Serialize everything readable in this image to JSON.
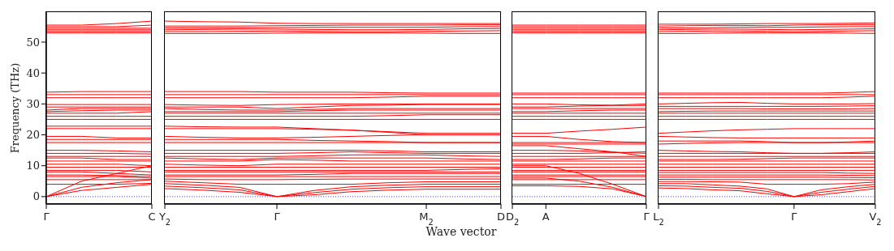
{
  "chart_data": [
    {
      "type": "line",
      "color": "#ff0000",
      "ylabel": "Frequency (THz)",
      "categories": [
        "Γ",
        null,
        null,
        "C"
      ],
      "ylim": [
        -2.4,
        59.7
      ],
      "yticks": [
        0,
        10,
        20,
        30,
        40,
        50
      ],
      "ref_lines": [
        {
          "axis": "y",
          "value": 0,
          "color": "#0000ff",
          "line_style": "dotted"
        }
      ],
      "series": [
        {
          "values": [
            53,
            53,
            53,
            53
          ]
        },
        {
          "values": [
            53.5,
            53.5,
            53.5,
            53.5
          ]
        },
        {
          "values": [
            54,
            54,
            54,
            54
          ]
        },
        {
          "values": [
            54.5,
            54.5,
            54.5,
            54.5
          ]
        },
        {
          "values": [
            55,
            55,
            55,
            55.5
          ]
        },
        {
          "values": [
            55.5,
            55.5,
            56,
            56.8
          ]
        },
        {
          "values": [
            32,
            32,
            32,
            32
          ]
        },
        {
          "values": [
            33,
            33,
            33,
            33
          ]
        },
        {
          "values": [
            33.8,
            34,
            34,
            34
          ]
        },
        {
          "values": [
            25,
            25,
            25,
            25
          ]
        },
        {
          "values": [
            26,
            26,
            26,
            26
          ]
        },
        {
          "values": [
            27,
            27,
            27,
            27.5
          ]
        },
        {
          "values": [
            27.5,
            27.8,
            28,
            28
          ]
        },
        {
          "values": [
            28,
            28.5,
            28.5,
            28.5
          ]
        },
        {
          "values": [
            29,
            29,
            29,
            29
          ]
        },
        {
          "values": [
            29.8,
            29.8,
            29.8,
            29.8
          ]
        },
        {
          "values": [
            22,
            22,
            22,
            22
          ]
        },
        {
          "values": [
            22.8,
            22.8,
            22.8,
            22.8
          ]
        },
        {
          "values": [
            17.5,
            17.5,
            17.5,
            17.5
          ]
        },
        {
          "values": [
            18.5,
            18.5,
            18.5,
            18.5
          ]
        },
        {
          "values": [
            19.5,
            19.5,
            19,
            19
          ]
        },
        {
          "values": [
            15,
            15,
            14.8,
            14.5
          ]
        },
        {
          "values": [
            14,
            14,
            14,
            13.8
          ]
        },
        {
          "values": [
            13,
            13,
            13,
            13
          ]
        },
        {
          "values": [
            12.5,
            12.5,
            12,
            12
          ]
        },
        {
          "values": [
            11.5,
            11.5,
            11.5,
            11.5
          ]
        },
        {
          "values": [
            10.5,
            10.5,
            10.5,
            10
          ]
        },
        {
          "values": [
            9.5,
            9.5,
            9.5,
            9.5
          ]
        },
        {
          "values": [
            8.5,
            8.5,
            8.5,
            8
          ]
        },
        {
          "values": [
            8,
            8,
            7.5,
            7
          ]
        },
        {
          "values": [
            7,
            7,
            6.8,
            6.5
          ]
        },
        {
          "values": [
            6.5,
            6.5,
            6.5,
            6
          ]
        },
        {
          "values": [
            5.5,
            5.5,
            5.5,
            5.5
          ]
        },
        {
          "values": [
            4,
            4,
            4,
            4.3
          ]
        },
        {
          "values": [
            0,
            5,
            7.5,
            10
          ]
        },
        {
          "values": [
            0,
            3,
            4.5,
            5.5
          ]
        },
        {
          "values": [
            0,
            2,
            3,
            4
          ]
        }
      ]
    },
    {
      "type": "line",
      "color": "#ff0000",
      "xlabel": "Wave vector",
      "tick_labels": "x",
      "categories": [
        "Y$_{2}$",
        null,
        null,
        "Γ",
        null,
        null,
        null,
        "M$_{2}$",
        null,
        "D"
      ],
      "ylim": [
        -2.4,
        59.7
      ],
      "yticks": [
        0,
        10,
        20,
        30,
        40,
        50
      ],
      "ref_lines": [
        {
          "axis": "y",
          "value": 0,
          "color": "#0000ff",
          "line_style": "dotted"
        }
      ],
      "series": [
        {
          "values": [
            52.8,
            52.8,
            52.8,
            52.9,
            53,
            53,
            53,
            52.9,
            52.8,
            52.8
          ]
        },
        {
          "values": [
            53.4,
            53.4,
            53.5,
            53.6,
            53.5,
            53.4,
            53.4,
            53.5,
            53.6,
            53.7
          ]
        },
        {
          "values": [
            54,
            54.1,
            54.2,
            54.2,
            54.1,
            54,
            54,
            54.1,
            54.3,
            54.4
          ]
        },
        {
          "values": [
            54.6,
            54.6,
            54.6,
            54.7,
            54.8,
            54.8,
            54.8,
            54.8,
            55,
            55
          ]
        },
        {
          "values": [
            55.2,
            55.2,
            55.2,
            55.3,
            55.4,
            55.5,
            55.5,
            55.5,
            55.6,
            55.6
          ]
        },
        {
          "values": [
            56.8,
            56.6,
            56.5,
            56.1,
            56,
            56,
            56,
            56,
            56,
            56
          ]
        },
        {
          "values": [
            32,
            32,
            32,
            32,
            32,
            32,
            32.2,
            32.5,
            32.5,
            32.5
          ]
        },
        {
          "values": [
            33,
            33,
            33,
            33,
            33,
            33,
            33,
            33,
            33,
            33
          ]
        },
        {
          "values": [
            34,
            34,
            34,
            33.8,
            33.8,
            33.8,
            33.6,
            33.5,
            33.5,
            33.5
          ]
        },
        {
          "values": [
            25,
            25,
            25,
            25,
            25,
            25,
            25,
            25,
            25,
            25
          ]
        },
        {
          "values": [
            26,
            26,
            26,
            26,
            26,
            26,
            26.2,
            26.5,
            26.5,
            26.5
          ]
        },
        {
          "values": [
            27,
            27,
            27,
            27,
            27,
            27,
            27,
            27,
            27,
            27
          ]
        },
        {
          "values": [
            27.5,
            27.5,
            27.5,
            27.5,
            27.8,
            28,
            28,
            28,
            28,
            28
          ]
        },
        {
          "values": [
            28.5,
            28.2,
            28,
            28,
            28.2,
            28.5,
            28.5,
            28.5,
            28.5,
            28.5
          ]
        },
        {
          "values": [
            29,
            29,
            29,
            28.5,
            29,
            29.5,
            29.6,
            29.8,
            29.8,
            29.8
          ]
        },
        {
          "values": [
            29.8,
            29.6,
            29.5,
            29.8,
            29.9,
            30,
            30,
            30,
            30,
            30
          ]
        },
        {
          "values": [
            22,
            22,
            22,
            22,
            21.8,
            21.5,
            21,
            20.5,
            20.5,
            20.5
          ]
        },
        {
          "values": [
            22.8,
            22.6,
            22.5,
            22.5,
            22,
            21.5,
            20.8,
            20,
            20,
            20
          ]
        },
        {
          "values": [
            17.5,
            17.5,
            17.5,
            17.5,
            17.5,
            17.5,
            17.5,
            17.5,
            17.5,
            17.5
          ]
        },
        {
          "values": [
            18.5,
            18.5,
            18.5,
            18.5,
            18.2,
            18,
            17.8,
            17.5,
            17.5,
            17.5
          ]
        },
        {
          "values": [
            19.5,
            19.2,
            19,
            19,
            19.2,
            19.5,
            19.8,
            20,
            20,
            20
          ]
        },
        {
          "values": [
            15,
            15,
            15,
            15,
            15,
            15,
            14.8,
            14.5,
            14.5,
            14.5
          ]
        },
        {
          "values": [
            14,
            14,
            14,
            14,
            14.2,
            14.5,
            14.2,
            14,
            14,
            14
          ]
        },
        {
          "values": [
            13,
            13,
            13,
            13,
            13.2,
            13.5,
            13.5,
            13.5,
            13.2,
            13
          ]
        },
        {
          "values": [
            12.5,
            12.2,
            12,
            12.5,
            12.5,
            12.5,
            12.5,
            12.5,
            12.2,
            12
          ]
        },
        {
          "values": [
            11.5,
            11.5,
            11.5,
            12,
            11.8,
            11.5,
            11.5,
            11.5,
            11.5,
            11.5
          ]
        },
        {
          "values": [
            10.5,
            10.2,
            10,
            10.5,
            10.5,
            10.5,
            10.5,
            10.5,
            10.5,
            10.5
          ]
        },
        {
          "values": [
            9.5,
            9.5,
            9.5,
            9.5,
            9.5,
            9.5,
            9.5,
            9.5,
            9.5,
            9.5
          ]
        },
        {
          "values": [
            8.5,
            8.5,
            8.5,
            8.5,
            8.5,
            8.5,
            8.5,
            8.5,
            8.8,
            9
          ]
        },
        {
          "values": [
            8,
            8,
            8,
            8,
            8,
            8,
            8,
            8,
            8,
            8
          ]
        },
        {
          "values": [
            7,
            7,
            7,
            7,
            7.2,
            7.5,
            7.5,
            7.5,
            7.5,
            7.5
          ]
        },
        {
          "values": [
            6.5,
            6.5,
            6.5,
            6.5,
            6.5,
            6.5,
            6.5,
            6.5,
            6.5,
            6.5
          ]
        },
        {
          "values": [
            5.7,
            5.5,
            5.5,
            5.5,
            5.6,
            5.7,
            5.7,
            5.7,
            5.7,
            5.7
          ]
        },
        {
          "values": [
            5,
            4.5,
            4,
            4,
            4,
            4,
            4.5,
            4.8,
            4.8,
            4.8
          ]
        },
        {
          "values": [
            4.2,
            3.7,
            3,
            0,
            2,
            3.2,
            3.7,
            4,
            4,
            4
          ]
        },
        {
          "values": [
            3.4,
            2.9,
            2.2,
            0,
            1.3,
            2.4,
            2.9,
            3.2,
            3.2,
            3.2
          ]
        },
        {
          "values": [
            2.6,
            2.1,
            1.4,
            0,
            0.6,
            1.6,
            2.1,
            2.4,
            2.4,
            2.4
          ]
        }
      ]
    },
    {
      "type": "line",
      "color": "#ff0000",
      "tick_labels": "x",
      "categories": [
        "D$_{2}$",
        "A",
        null,
        null,
        "Γ"
      ],
      "ylim": [
        -2.4,
        59.7
      ],
      "yticks": [
        0,
        10,
        20,
        30,
        40,
        50
      ],
      "ref_lines": [
        {
          "axis": "y",
          "value": 0,
          "color": "#0000ff",
          "line_style": "dotted"
        }
      ],
      "series": [
        {
          "values": [
            53,
            53,
            53,
            53,
            53
          ]
        },
        {
          "values": [
            53.5,
            53.5,
            53.5,
            53.5,
            53.5
          ]
        },
        {
          "values": [
            54,
            54,
            54,
            54,
            54
          ]
        },
        {
          "values": [
            54.5,
            54.5,
            54.5,
            54.5,
            54.5
          ]
        },
        {
          "values": [
            55,
            55,
            55,
            55,
            55
          ]
        },
        {
          "values": [
            55.5,
            55.5,
            55.5,
            55.5,
            55.5
          ]
        },
        {
          "values": [
            32,
            32,
            32,
            32,
            32
          ]
        },
        {
          "values": [
            33,
            33,
            33,
            33,
            33
          ]
        },
        {
          "values": [
            33.5,
            33.5,
            33.5,
            33.5,
            33.5
          ]
        },
        {
          "values": [
            25,
            25,
            25,
            25,
            25
          ]
        },
        {
          "values": [
            26,
            26,
            26,
            26,
            26
          ]
        },
        {
          "values": [
            27,
            27,
            27,
            27,
            27
          ]
        },
        {
          "values": [
            27.5,
            27.5,
            27.8,
            28,
            28
          ]
        },
        {
          "values": [
            28.5,
            28.5,
            28.5,
            28.5,
            28.5
          ]
        },
        {
          "values": [
            29,
            29,
            29.3,
            29.5,
            29.5
          ]
        },
        {
          "values": [
            30,
            30,
            29.7,
            29.6,
            30
          ]
        },
        {
          "values": [
            20.5,
            20.5,
            21.2,
            21.8,
            22.5
          ]
        },
        {
          "values": [
            19.5,
            19.5,
            18.5,
            17.8,
            17.5
          ]
        },
        {
          "values": [
            17,
            17,
            17,
            17,
            17
          ]
        },
        {
          "values": [
            17.5,
            17.5,
            17.5,
            17.5,
            17.5
          ]
        },
        {
          "values": [
            16.5,
            16.5,
            15.5,
            14.5,
            13
          ]
        },
        {
          "values": [
            15,
            15,
            14.8,
            14.4,
            14
          ]
        },
        {
          "values": [
            14,
            14,
            14,
            14.2,
            14.5
          ]
        },
        {
          "values": [
            13,
            13,
            13,
            13,
            13
          ]
        },
        {
          "values": [
            12,
            12,
            12.2,
            12.5,
            12.5
          ]
        },
        {
          "values": [
            11.5,
            11.5,
            11.5,
            11.5,
            11.5
          ]
        },
        {
          "values": [
            10.5,
            10.5,
            10.5,
            10.5,
            10.5
          ]
        },
        {
          "values": [
            9.5,
            9.5,
            9.5,
            9.5,
            9.5
          ]
        },
        {
          "values": [
            8.5,
            8.5,
            8.5,
            8.5,
            8.5
          ]
        },
        {
          "values": [
            8,
            8,
            8,
            8,
            8
          ]
        },
        {
          "values": [
            7,
            7,
            7,
            7,
            7
          ]
        },
        {
          "values": [
            6.5,
            6.5,
            6.5,
            6.5,
            6.5
          ]
        },
        {
          "values": [
            5.5,
            5.5,
            5.5,
            5.5,
            5.5
          ]
        },
        {
          "values": [
            4,
            4,
            4,
            4,
            4
          ]
        },
        {
          "values": [
            10,
            10,
            7.5,
            4,
            0
          ]
        },
        {
          "values": [
            6,
            6,
            5,
            3,
            0
          ]
        },
        {
          "values": [
            3.5,
            3.5,
            3.3,
            2.5,
            0
          ]
        }
      ]
    },
    {
      "type": "line",
      "color": "#ff0000",
      "tick_labels": "x",
      "categories": [
        "L$_{2}$",
        null,
        null,
        null,
        null,
        "Γ",
        null,
        null,
        "V$_{2}$"
      ],
      "ylim": [
        -2.4,
        59.7
      ],
      "yticks": [
        0,
        10,
        20,
        30,
        40,
        50
      ],
      "ref_lines": [
        {
          "axis": "y",
          "value": 0,
          "color": "#0000ff",
          "line_style": "dotted"
        }
      ],
      "series": [
        {
          "values": [
            52.8,
            52.8,
            52.9,
            53,
            53,
            53,
            53,
            52.9,
            52.8
          ]
        },
        {
          "values": [
            53.4,
            53.5,
            53.6,
            53.6,
            53.5,
            53.4,
            53.5,
            53.6,
            53.7
          ]
        },
        {
          "values": [
            54,
            54.1,
            54.2,
            54.2,
            54.1,
            54,
            54.1,
            54.2,
            54.3
          ]
        },
        {
          "values": [
            54.6,
            54.6,
            54.7,
            54.8,
            54.8,
            54.8,
            54.9,
            55,
            55
          ]
        },
        {
          "values": [
            55.2,
            55.3,
            55.4,
            55.4,
            55.3,
            55.5,
            55.6,
            55.6,
            55.6
          ]
        },
        {
          "values": [
            55.8,
            55.8,
            55.8,
            55.9,
            56,
            56,
            56,
            56.1,
            56.2
          ]
        },
        {
          "values": [
            32,
            32,
            32,
            32,
            32,
            32,
            32,
            32.2,
            32.5
          ]
        },
        {
          "values": [
            33,
            33,
            33,
            33,
            33,
            33,
            33,
            33,
            33
          ]
        },
        {
          "values": [
            33.5,
            33.5,
            33.5,
            33.5,
            33.5,
            33.5,
            33.5,
            33.7,
            34
          ]
        },
        {
          "values": [
            25,
            25,
            25,
            25,
            25,
            25,
            25,
            25,
            25
          ]
        },
        {
          "values": [
            26,
            26,
            26,
            26,
            26,
            26,
            26,
            26,
            26
          ]
        },
        {
          "values": [
            27,
            27,
            27,
            27,
            27,
            27,
            27,
            27,
            27
          ]
        },
        {
          "values": [
            27.5,
            27.6,
            27.7,
            27.7,
            27.7,
            27.7,
            27.7,
            27.7,
            27.7
          ]
        },
        {
          "values": [
            28.5,
            28.5,
            28.5,
            28.5,
            28.4,
            28.4,
            28.4,
            28.4,
            28.5
          ]
        },
        {
          "values": [
            29.2,
            29.2,
            29.2,
            29.2,
            29.2,
            29.2,
            29.2,
            29.3,
            29.4
          ]
        },
        {
          "values": [
            30,
            30.2,
            30.4,
            30.5,
            30.2,
            30,
            30,
            30,
            30.1
          ]
        },
        {
          "values": [
            20.5,
            20.9,
            21.3,
            21.6,
            21.8,
            22,
            22,
            22,
            22
          ]
        },
        {
          "values": [
            19.5,
            19.3,
            19.1,
            19,
            19,
            19,
            19,
            19,
            19
          ]
        },
        {
          "values": [
            17,
            17.2,
            17.4,
            17.5,
            17.5,
            17.5,
            17.5,
            17.5,
            17.5
          ]
        },
        {
          "values": [
            18,
            18,
            18,
            18,
            17.8,
            17.5,
            17.5,
            17.7,
            18
          ]
        },
        {
          "values": [
            15,
            14.8,
            14.6,
            14.5,
            14.2,
            14,
            14,
            14,
            14
          ]
        },
        {
          "values": [
            14,
            14,
            14,
            14,
            14,
            14,
            14,
            14.2,
            14.5
          ]
        },
        {
          "values": [
            13,
            13,
            13,
            13,
            13,
            13,
            13,
            13,
            13
          ]
        },
        {
          "values": [
            12,
            12,
            12,
            12.1,
            12.3,
            12.5,
            12.5,
            12.5,
            12.5
          ]
        },
        {
          "values": [
            11.5,
            11.5,
            11.5,
            11.5,
            11.5,
            11.5,
            11.5,
            11.5,
            11.5
          ]
        },
        {
          "values": [
            10.5,
            10.5,
            10.5,
            10.5,
            10.5,
            10.5,
            10.5,
            10.5,
            10.5
          ]
        },
        {
          "values": [
            9.5,
            9.5,
            9.5,
            9.5,
            9.5,
            9.5,
            9.5,
            9.5,
            9.5
          ]
        },
        {
          "values": [
            8.5,
            8.5,
            8.5,
            8.5,
            8.5,
            8.5,
            8.5,
            8.5,
            8.5
          ]
        },
        {
          "values": [
            7.8,
            7.8,
            7.8,
            7.8,
            7.8,
            7.8,
            7.8,
            7.6,
            7.5
          ]
        },
        {
          "values": [
            7,
            7,
            7,
            7,
            7,
            7,
            7,
            6.9,
            6.8
          ]
        },
        {
          "values": [
            6.3,
            6.3,
            6.3,
            6.3,
            6.3,
            6.3,
            6.3,
            6.2,
            6.1
          ]
        },
        {
          "values": [
            5.6,
            5.6,
            5.5,
            5.5,
            5.5,
            5.5,
            5.5,
            5.5,
            5.4
          ]
        },
        {
          "values": [
            4.9,
            4.9,
            4.8,
            4.7,
            4,
            4,
            4,
            4.2,
            4.7
          ]
        },
        {
          "values": [
            4.2,
            4.2,
            3.8,
            3.4,
            2.5,
            0,
            2.2,
            3.2,
            4
          ]
        },
        {
          "values": [
            3.5,
            3.4,
            3,
            2.7,
            1.7,
            0,
            1.4,
            2.4,
            3.3
          ]
        },
        {
          "values": [
            2.8,
            2.6,
            2.2,
            1.9,
            0.9,
            0,
            0.6,
            1.6,
            2.6
          ]
        }
      ]
    }
  ]
}
